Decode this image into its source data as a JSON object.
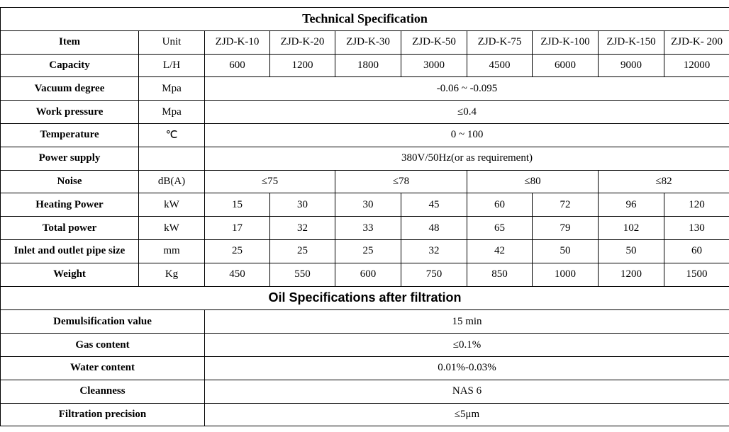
{
  "spec": {
    "title": "Technical Specification",
    "header": {
      "item": "Item",
      "unit": "Unit",
      "models": [
        "ZJD-K-10",
        "ZJD-K-20",
        "ZJD-K-30",
        "ZJD-K-50",
        "ZJD-K-75",
        "ZJD-K-100",
        "ZJD-K-150",
        "ZJD-K- 200"
      ]
    },
    "rows": [
      {
        "item": "Capacity",
        "unit": "L/H",
        "cells": [
          "600",
          "1200",
          "1800",
          "3000",
          "4500",
          "6000",
          "9000",
          "12000"
        ]
      },
      {
        "item": "Vacuum degree",
        "unit": "Mpa",
        "cells": [
          "-0.06 ~ -0.095"
        ]
      },
      {
        "item": "Work pressure",
        "unit": "Mpa",
        "cells": [
          "≤0.4"
        ]
      },
      {
        "item": "Temperature",
        "unit": "℃",
        "cells": [
          "0 ~ 100"
        ]
      },
      {
        "item": "Power supply",
        "unit": null,
        "cells": [
          "380V/50Hz(or as requirement)"
        ]
      },
      {
        "item": "Noise",
        "unit": "dB(A)",
        "cells": [
          "≤75",
          "≤78",
          "≤80",
          "≤82"
        ]
      },
      {
        "item": "Heating Power",
        "unit": "kW",
        "cells": [
          "15",
          "30",
          "30",
          "45",
          "60",
          "72",
          "96",
          "120"
        ]
      },
      {
        "item": "Total power",
        "unit": "kW",
        "cells": [
          "17",
          "32",
          "33",
          "48",
          "65",
          "79",
          "102",
          "130"
        ]
      },
      {
        "item": "Inlet and outlet pipe size",
        "unit": "mm",
        "cells": [
          "25",
          "25",
          "25",
          "32",
          "42",
          "50",
          "50",
          "60"
        ]
      },
      {
        "item": "Weight",
        "unit": "Kg",
        "cells": [
          "450",
          "550",
          "600",
          "750",
          "850",
          "1000",
          "1200",
          "1500"
        ]
      }
    ]
  },
  "oil": {
    "title": "Oil Specifications after filtration",
    "rows": [
      {
        "item": "Demulsification value",
        "value": "15 min"
      },
      {
        "item": "Gas content",
        "value": "≤0.1%"
      },
      {
        "item": "Water content",
        "value": "0.01%-0.03%"
      },
      {
        "item": "Cleanness",
        "value": "NAS 6"
      },
      {
        "item": "Filtration precision",
        "value": "≤5μm"
      }
    ]
  }
}
